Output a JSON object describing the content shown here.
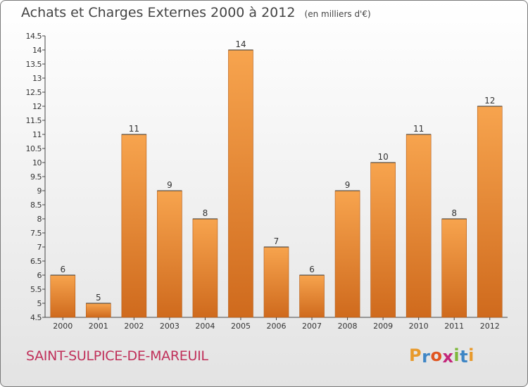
{
  "chart_data": {
    "type": "bar",
    "title": "Achats et Charges Externes 2000 à 2012",
    "unit": "(en milliers d'€)",
    "categories": [
      "2000",
      "2001",
      "2002",
      "2003",
      "2004",
      "2005",
      "2006",
      "2007",
      "2008",
      "2009",
      "2010",
      "2011",
      "2012"
    ],
    "values": [
      6,
      5,
      11,
      9,
      8,
      14,
      7,
      6,
      9,
      10,
      11,
      8,
      12
    ],
    "ylim": [
      4.5,
      14.5
    ],
    "yticks": [
      "4.5",
      "5",
      "5.5",
      "6",
      "6.5",
      "7",
      "7.5",
      "8",
      "8.5",
      "9",
      "9.5",
      "10",
      "10.5",
      "11",
      "11.5",
      "12",
      "12.5",
      "13",
      "13.5",
      "14",
      "14.5"
    ],
    "grid": false,
    "legend": "none",
    "bar_color_top": "#f7a44e",
    "bar_color_bottom": "#cf6a1d"
  },
  "footer": {
    "commune": "SAINT-SULPICE-DE-MAREUIL",
    "logo_letters": [
      "P",
      "r",
      "o",
      "x",
      "i",
      "t",
      "i"
    ],
    "logo_colors": [
      "#e89a2c",
      "#3f86c5",
      "#e05520",
      "#c3267a",
      "#7db83a",
      "#3f86c5",
      "#e89a2c"
    ]
  }
}
